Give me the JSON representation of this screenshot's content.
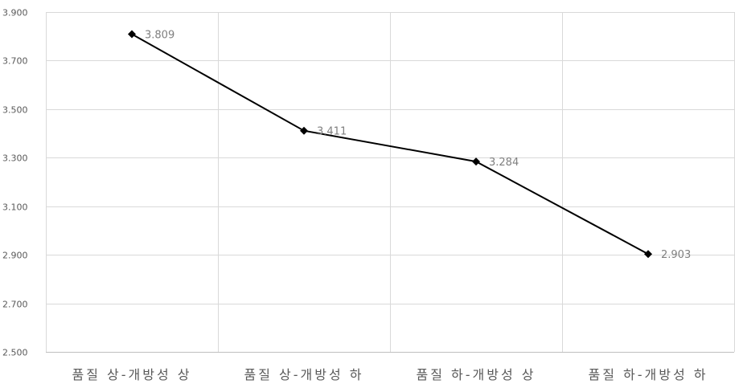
{
  "chart_data": {
    "type": "line",
    "categories": [
      "품질 상-개방성 상",
      "품질 상-개방성 하",
      "품질 하-개방성 상",
      "품질 하-개방성 하"
    ],
    "series": [
      {
        "values": [
          3.809,
          3.411,
          3.284,
          2.903
        ],
        "value_labels": [
          "3.809",
          "3.411",
          "3.284",
          "2.903"
        ]
      }
    ],
    "ylim": [
      2.5,
      3.9
    ],
    "yticks": [
      2.5,
      2.7,
      2.9,
      3.1,
      3.3,
      3.5,
      3.7,
      3.9
    ],
    "ytick_labels": [
      "2.500",
      "2.700",
      "2.900",
      "3.100",
      "3.300",
      "3.500",
      "3.700",
      "3.900"
    ],
    "grid": true,
    "marker": "diamond",
    "colors": {
      "line": "#000000",
      "grid": "#d9d9d9",
      "text": "#595959",
      "data_label": "#7f7f7f"
    }
  }
}
